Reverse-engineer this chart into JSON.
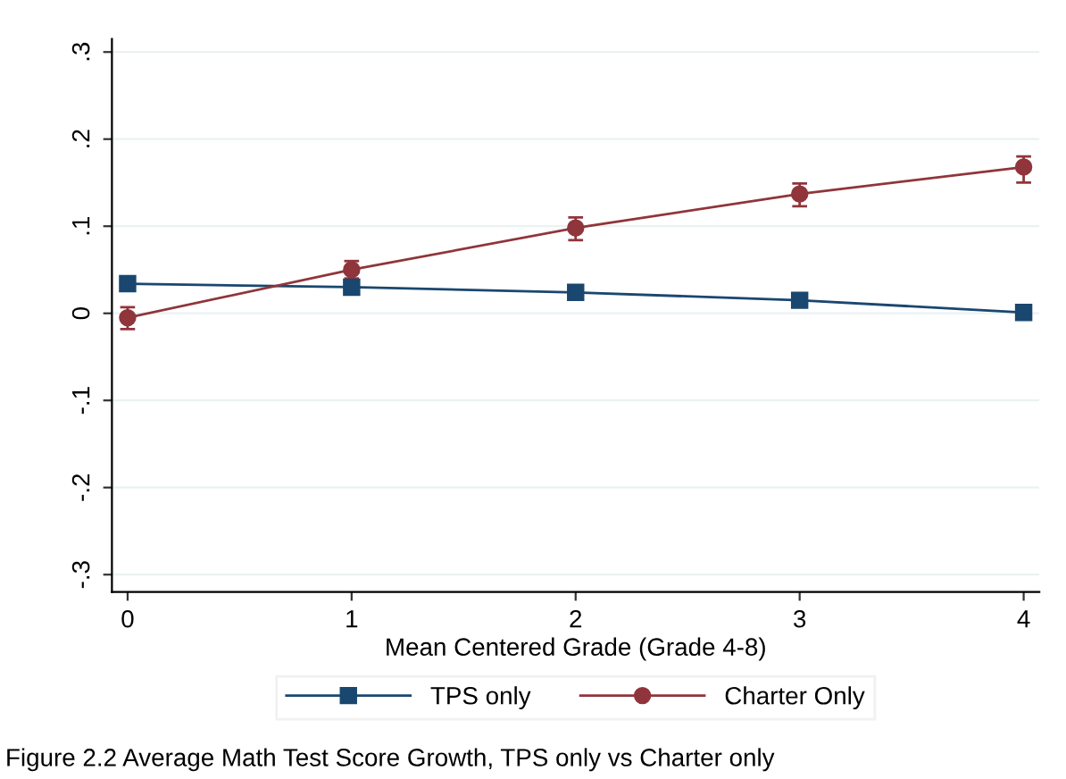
{
  "chart_data": {
    "type": "line",
    "xlabel": "Mean Centered Grade (Grade 4-8)",
    "x": [
      0,
      1,
      2,
      3,
      4
    ],
    "series": [
      {
        "name": "TPS only",
        "color": "#1a476f",
        "values": [
          0.034,
          0.03,
          0.024,
          0.015,
          0.001
        ],
        "marker": "square"
      },
      {
        "name": "Charter Only",
        "color": "#90353b",
        "values": [
          -0.005,
          0.05,
          0.098,
          0.137,
          0.168
        ],
        "marker": "circle",
        "errors": [
          [
            -0.018,
            0.007
          ],
          [
            0.04,
            0.06
          ],
          [
            0.084,
            0.11
          ],
          [
            0.123,
            0.149
          ],
          [
            0.15,
            0.18
          ]
        ]
      }
    ],
    "xlim": [
      -0.07,
      4.07
    ],
    "ylim": [
      -0.32,
      0.315
    ],
    "xticks": [
      0,
      1,
      2,
      3,
      4
    ],
    "yticks": [
      {
        "value": -0.3,
        "label": "-.3"
      },
      {
        "value": -0.2,
        "label": "-.2"
      },
      {
        "value": -0.1,
        "label": "-.1"
      },
      {
        "value": 0,
        "label": "0"
      },
      {
        "value": 0.1,
        "label": ".1"
      },
      {
        "value": 0.2,
        "label": ".2"
      },
      {
        "value": 0.3,
        "label": ".3"
      }
    ],
    "grid": "y",
    "legend": "bottom",
    "line_style": "solid",
    "annotations": [
      "Figure 2.2 Average Math Test Score Growth, TPS only vs Charter only"
    ]
  }
}
